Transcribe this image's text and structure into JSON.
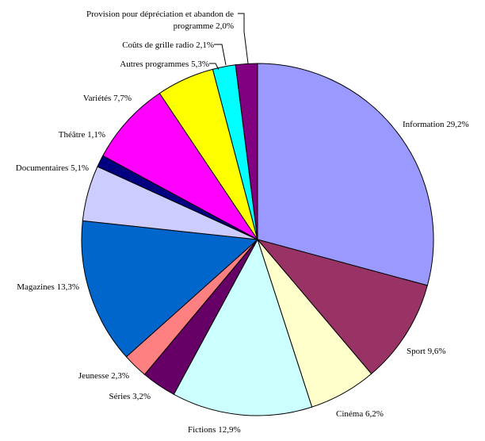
{
  "chart_data": {
    "type": "pie",
    "title": "",
    "start_angle_deg": 90,
    "direction": "clockwise",
    "legend": "none",
    "slices": [
      {
        "label": "Information",
        "value": 29.2,
        "text": "Information 29,2%",
        "color": "#9999ff"
      },
      {
        "label": "Sport",
        "value": 9.6,
        "text": "Sport 9,6%",
        "color": "#993366"
      },
      {
        "label": "Cinéma",
        "value": 6.2,
        "text": "Cinéma 6,2%",
        "color": "#ffffcc"
      },
      {
        "label": "Fictions",
        "value": 12.9,
        "text": "Fictions 12,9%",
        "color": "#ccffff"
      },
      {
        "label": "Séries",
        "value": 3.2,
        "text": "Séries 3,2%",
        "color": "#660066"
      },
      {
        "label": "Jeunesse",
        "value": 2.3,
        "text": "Jeunesse 2,3%",
        "color": "#ff8080"
      },
      {
        "label": "Magazines",
        "value": 13.3,
        "text": "Magazines 13,3%",
        "color": "#0066cc"
      },
      {
        "label": "Documentaires",
        "value": 5.1,
        "text": "Documentaires 5,1%",
        "color": "#ccccff"
      },
      {
        "label": "Théâtre",
        "value": 1.1,
        "text": "Théâtre 1,1%",
        "color": "#000080"
      },
      {
        "label": "Variétés",
        "value": 7.7,
        "text": "Variétés 7,7%",
        "color": "#ff00ff"
      },
      {
        "label": "Autres programmes",
        "value": 5.3,
        "text": "Autres programmes 5,3%",
        "color": "#ffff00"
      },
      {
        "label": "Coûts de grille radio",
        "value": 2.1,
        "text": "Coûts de grille radio 2,1%",
        "color": "#00ffff"
      },
      {
        "label": "Provision pour dépréciation et abandon de programme",
        "value": 2.0,
        "text": [
          "Provision pour dépréciation et abandon de",
          "programme 2,0%"
        ],
        "color": "#800080"
      }
    ]
  }
}
